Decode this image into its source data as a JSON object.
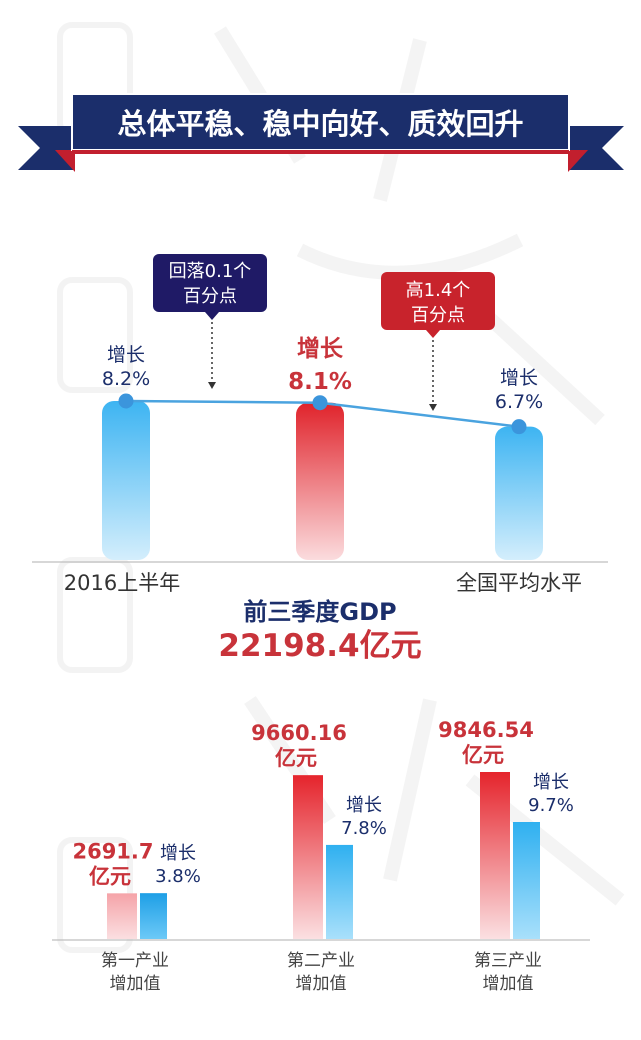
{
  "banner": {
    "title": "总体平稳、稳中向好、质效回升"
  },
  "colors": {
    "navy": "#1b2e6b",
    "red": "#d7242b",
    "blue": "#4cb9f0",
    "label_red": "#c8333a",
    "text_dark": "#1b2e6b"
  },
  "top_chart": {
    "callout_left": {
      "line1": "回落0.1个",
      "line2": "百分点"
    },
    "callout_right": {
      "line1": "高1.4个",
      "line2": "百分点"
    },
    "center_title": "前三季度GDP",
    "center_value": "22198.4亿元"
  },
  "chart_data": [
    {
      "type": "bar",
      "title": "",
      "categories": [
        "2016上半年",
        "前三季度GDP",
        "全国平均水平"
      ],
      "series": [
        {
          "name": "增长",
          "values": [
            8.2,
            8.1,
            6.7
          ],
          "labels": [
            "增长\n8.2%",
            "增长\n8.1%",
            "增长\n6.7%"
          ]
        }
      ],
      "overlay": "line connecting bar tops",
      "annotations": [
        "回落0.1个百分点",
        "高1.4个百分点"
      ],
      "xlabel": "",
      "ylabel": "",
      "grid": false,
      "legend": "none"
    },
    {
      "type": "bar",
      "categories": [
        "第一产业增加值",
        "第二产业增加值",
        "第三产业增加值"
      ],
      "category_lines": [
        [
          "第一产业",
          "增加值"
        ],
        [
          "第二产业",
          "增加值"
        ],
        [
          "第三产业",
          "增加值"
        ]
      ],
      "series": [
        {
          "name": "",
          "unit": "亿元",
          "values": [
            2691.7,
            9660.16,
            9846.54
          ],
          "labels": [
            "2691.7",
            "9660.16",
            "9846.54"
          ]
        },
        {
          "name": "增长",
          "unit": "%",
          "values": [
            3.8,
            7.8,
            9.7
          ],
          "labels": [
            "3.8%",
            "7.8%",
            "9.7%"
          ]
        }
      ],
      "value_unit_label": "亿元",
      "growth_label": "增长",
      "xlabel": "",
      "ylabel": "",
      "grid": false,
      "legend": "none"
    }
  ]
}
